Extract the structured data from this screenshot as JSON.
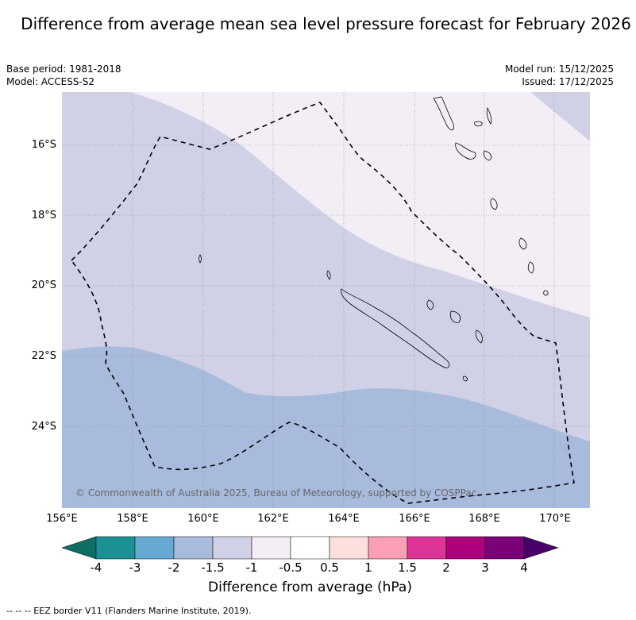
{
  "title": "Difference from average mean sea level pressure forecast for February 2026",
  "base_period": "Base period: 1981-2018",
  "model": "Model: ACCESS-S2",
  "model_run": "Model run: 15/12/2025",
  "issued": "Issued: 17/12/2025",
  "copyright": "© Commonwealth of Australia 2025, Bureau of Meteorology, supported by COSPPac",
  "lat_labels": [
    "16°S",
    "18°S",
    "20°S",
    "22°S",
    "24°S"
  ],
  "lon_labels": [
    "156°E",
    "158°E",
    "160°E",
    "162°E",
    "164°E",
    "166°E",
    "168°E",
    "170°E"
  ],
  "colorbar": {
    "label": "Difference from average (hPa)",
    "ticks": [
      "-4",
      "-3",
      "-2",
      "-1.5",
      "-1",
      "-0.5",
      "0.5",
      "1",
      "1.5",
      "2",
      "3",
      "4"
    ],
    "colors": {
      "under": "#0d6e63",
      "bins": [
        "#1b9196",
        "#66aad4",
        "#a8bbdc",
        "#d0d1e6",
        "#f3edf5",
        "#ffffff",
        "#fde0dd",
        "#fa9fb5",
        "#dd3497",
        "#ae017e",
        "#7a0177"
      ],
      "over": "#49006a"
    }
  },
  "footnote": "-- -- -- EEZ border V11 (Flanders Marine Institute, 2019).",
  "chart_data": {
    "type": "map",
    "title": "Difference from average mean sea level pressure forecast for February 2026",
    "x_range_deg_e": [
      156,
      171
    ],
    "y_range_deg_s": [
      14.5,
      26.2
    ],
    "anomaly_regions": [
      {
        "range_hPa": "-1 to -0.5",
        "location": "north-east (north of about 16°S in the west, 21°S in the east)"
      },
      {
        "range_hPa": "-1.5 to -1",
        "location": "central band across New Caledonia"
      },
      {
        "range_hPa": "-2 to -1.5",
        "location": "south-west (south of about 22°S to 24.5°S)"
      }
    ],
    "overlay": "EEZ border of New Caledonia (dashed)"
  }
}
